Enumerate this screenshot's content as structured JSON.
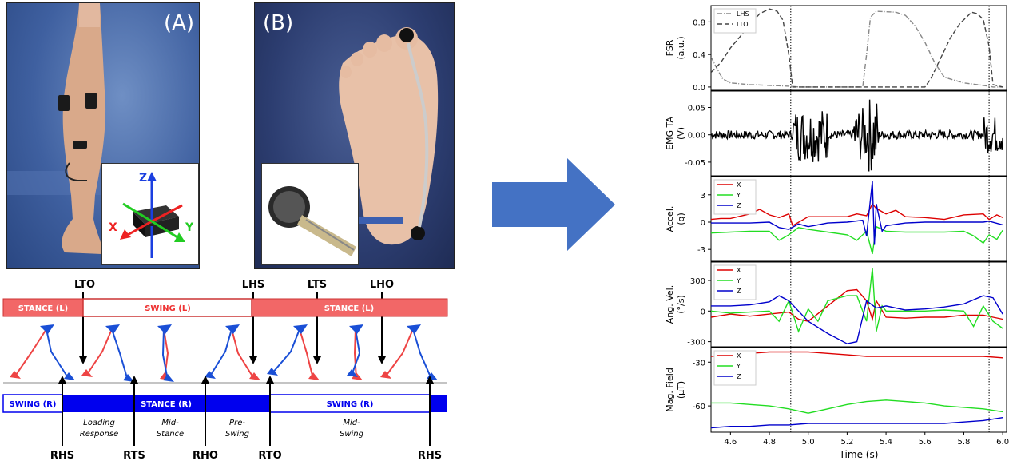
{
  "photo_a": {
    "label": "(A)",
    "imu_axes": {
      "z": "Z",
      "x": "X",
      "y": "Y"
    }
  },
  "photo_b": {
    "label": "(B)"
  },
  "gait": {
    "top_events": [
      "LTO",
      "LHS",
      "LTS",
      "LHO"
    ],
    "bottom_events": [
      "RHS",
      "RTS",
      "RHO",
      "RTO",
      "RHS"
    ],
    "left_bar": [
      "STANCE (L)",
      "SWING (L)",
      "STANCE (L)"
    ],
    "right_bar": [
      "SWING (R)",
      "STANCE (R)",
      "SWING (R)"
    ],
    "phases": [
      "Loading\nResponse",
      "Mid-\nStance",
      "Pre-\nSwing",
      "Mid-\nSwing"
    ],
    "colors": {
      "left": "#f26767",
      "right": "#0000ee",
      "left_stick": "#ee4444",
      "right_stick": "#1a4fd6"
    }
  },
  "chart_data": {
    "type": "line",
    "xlabel": "Time (s)",
    "xlim": [
      4.5,
      6.02
    ],
    "xticks": [
      4.6,
      4.8,
      5.0,
      5.2,
      5.4,
      5.6,
      5.8,
      6.0
    ],
    "event_lines": [
      4.91,
      5.93
    ],
    "subplots": [
      {
        "ylabel": "FSR\n(a.u.)",
        "ylim": [
          -0.04,
          1.0
        ],
        "yticks": [
          0.0,
          0.4,
          0.8
        ],
        "legend": [
          "LHS",
          "LTO"
        ],
        "legend_pos": "upper-left",
        "series": [
          {
            "name": "LHS",
            "style": "dashdot",
            "color": "#888888",
            "x": [
              4.5,
              4.53,
              4.56,
              4.6,
              4.7,
              4.8,
              4.9,
              4.95,
              5.0,
              5.2,
              5.28,
              5.3,
              5.32,
              5.35,
              5.45,
              5.5,
              5.55,
              5.6,
              5.65,
              5.7,
              5.8,
              5.9,
              5.93,
              5.95,
              6.0
            ],
            "y": [
              0.37,
              0.23,
              0.1,
              0.05,
              0.03,
              0.02,
              0.01,
              0.0,
              0.0,
              0.0,
              0.0,
              0.4,
              0.86,
              0.93,
              0.92,
              0.88,
              0.75,
              0.55,
              0.3,
              0.12,
              0.05,
              0.02,
              0.01,
              0.0,
              0.0
            ]
          },
          {
            "name": "LTO",
            "style": "dashed",
            "color": "#444444",
            "x": [
              4.5,
              4.55,
              4.6,
              4.65,
              4.7,
              4.75,
              4.8,
              4.84,
              4.87,
              4.9,
              4.92,
              5.0,
              5.2,
              5.4,
              5.6,
              5.63,
              5.68,
              5.73,
              5.78,
              5.84,
              5.87,
              5.9,
              5.93,
              5.95,
              6.0
            ],
            "y": [
              0.18,
              0.3,
              0.48,
              0.62,
              0.77,
              0.9,
              0.96,
              0.93,
              0.82,
              0.4,
              0.0,
              0.0,
              0.0,
              0.0,
              0.0,
              0.1,
              0.35,
              0.6,
              0.78,
              0.92,
              0.9,
              0.83,
              0.5,
              0.03,
              0.0
            ]
          }
        ]
      },
      {
        "ylabel": "EMG TA\n(V)",
        "ylim": [
          -0.075,
          0.08
        ],
        "yticks": [
          -0.05,
          0.0,
          0.05
        ],
        "series": [
          {
            "name": "",
            "color": "#000000",
            "x": [],
            "y": []
          }
        ]
      },
      {
        "ylabel": "Accel.\n(g)",
        "ylim": [
          -4.3,
          5.0
        ],
        "yticks": [
          -3,
          0,
          3
        ],
        "legend": [
          "X",
          "Y",
          "Z"
        ],
        "legend_pos": "upper-left",
        "series": [
          {
            "name": "X",
            "color": "#dd0000",
            "x": [
              4.5,
              4.55,
              4.6,
              4.7,
              4.75,
              4.8,
              4.85,
              4.9,
              4.92,
              5.0,
              5.1,
              5.2,
              5.25,
              5.3,
              5.33,
              5.35,
              5.4,
              5.45,
              5.5,
              5.6,
              5.7,
              5.8,
              5.9,
              5.93,
              5.97,
              6.0
            ],
            "y": [
              0.3,
              0.4,
              0.4,
              0.9,
              1.4,
              0.8,
              0.5,
              0.9,
              -0.4,
              0.6,
              0.6,
              0.6,
              0.9,
              0.7,
              2.0,
              1.5,
              0.9,
              1.3,
              0.6,
              0.5,
              0.3,
              0.8,
              0.9,
              0.3,
              0.8,
              0.5
            ]
          },
          {
            "name": "Y",
            "color": "#22dd22",
            "x": [
              4.5,
              4.6,
              4.7,
              4.8,
              4.85,
              4.9,
              4.95,
              5.0,
              5.1,
              5.2,
              5.25,
              5.3,
              5.33,
              5.35,
              5.4,
              5.5,
              5.6,
              5.7,
              5.8,
              5.85,
              5.9,
              5.93,
              5.97,
              6.0
            ],
            "y": [
              -1.2,
              -1.1,
              -1.0,
              -1.0,
              -2.0,
              -1.4,
              -0.6,
              -0.8,
              -1.1,
              -1.4,
              -2.0,
              -1.0,
              -3.5,
              -0.5,
              -1.0,
              -1.1,
              -1.1,
              -1.1,
              -1.0,
              -1.5,
              -2.3,
              -1.4,
              -1.9,
              -0.9
            ]
          },
          {
            "name": "Z",
            "color": "#0000cc",
            "x": [
              4.5,
              4.6,
              4.7,
              4.8,
              4.85,
              4.9,
              4.95,
              5.0,
              5.1,
              5.2,
              5.28,
              5.3,
              5.33,
              5.34,
              5.35,
              5.38,
              5.4,
              5.5,
              5.6,
              5.7,
              5.8,
              5.9,
              5.93,
              6.0
            ],
            "y": [
              -0.1,
              -0.1,
              -0.1,
              0.0,
              -0.6,
              -0.8,
              -0.2,
              -0.5,
              -0.1,
              0.0,
              0.2,
              -1.5,
              4.5,
              -2.5,
              2.0,
              -1.0,
              -0.4,
              -0.1,
              0.0,
              0.0,
              0.0,
              0.0,
              0.1,
              -0.3
            ]
          }
        ]
      },
      {
        "ylabel": "Ang. Vel.\n(°/s)",
        "ylim": [
          -350,
          480
        ],
        "yticks": [
          -300,
          0,
          300
        ],
        "legend": [
          "X",
          "Y",
          "Z"
        ],
        "legend_pos": "upper-left",
        "series": [
          {
            "name": "X",
            "color": "#dd0000",
            "x": [
              4.5,
              4.6,
              4.7,
              4.8,
              4.9,
              4.95,
              5.0,
              5.1,
              5.2,
              5.25,
              5.3,
              5.33,
              5.35,
              5.4,
              5.5,
              5.6,
              5.7,
              5.8,
              5.9,
              5.95,
              6.0
            ],
            "y": [
              -60,
              -30,
              -50,
              -30,
              -10,
              -80,
              -100,
              50,
              200,
              210,
              100,
              -80,
              100,
              -60,
              -70,
              -60,
              -60,
              -40,
              -40,
              -60,
              -80
            ]
          },
          {
            "name": "Y",
            "color": "#22dd22",
            "x": [
              4.5,
              4.6,
              4.7,
              4.8,
              4.85,
              4.9,
              4.95,
              5.0,
              5.05,
              5.1,
              5.2,
              5.25,
              5.3,
              5.33,
              5.35,
              5.38,
              5.4,
              5.5,
              5.6,
              5.7,
              5.8,
              5.85,
              5.9,
              5.95,
              6.0
            ],
            "y": [
              0,
              -20,
              -10,
              0,
              -100,
              100,
              -200,
              20,
              -100,
              100,
              150,
              150,
              -100,
              420,
              -200,
              50,
              0,
              0,
              0,
              10,
              0,
              -150,
              50,
              -100,
              -170
            ]
          },
          {
            "name": "Z",
            "color": "#0000cc",
            "x": [
              4.5,
              4.6,
              4.7,
              4.8,
              4.85,
              4.9,
              4.95,
              5.0,
              5.1,
              5.2,
              5.25,
              5.3,
              5.35,
              5.4,
              5.5,
              5.6,
              5.7,
              5.8,
              5.9,
              5.95,
              6.0
            ],
            "y": [
              50,
              50,
              60,
              90,
              150,
              100,
              0,
              -100,
              -220,
              -320,
              -300,
              100,
              30,
              50,
              10,
              20,
              40,
              70,
              150,
              130,
              -30
            ]
          }
        ]
      },
      {
        "ylabel": "Mag. Field\n(μT)",
        "ylim": [
          -78,
          -20
        ],
        "yticks": [
          -60,
          -30
        ],
        "legend": [
          "X",
          "Y",
          "Z"
        ],
        "legend_pos": "upper-left",
        "series": [
          {
            "name": "X",
            "color": "#dd0000",
            "x": [
              4.5,
              4.6,
              4.7,
              4.8,
              4.9,
              5.0,
              5.1,
              5.2,
              5.3,
              5.4,
              5.5,
              5.6,
              5.7,
              5.8,
              5.9,
              6.0
            ],
            "y": [
              -26,
              -25,
              -24,
              -23,
              -23,
              -23,
              -24,
              -25,
              -26,
              -26,
              -26,
              -26,
              -26,
              -26,
              -26,
              -27
            ]
          },
          {
            "name": "Y",
            "color": "#22dd22",
            "x": [
              4.5,
              4.6,
              4.7,
              4.8,
              4.9,
              5.0,
              5.1,
              5.2,
              5.3,
              5.4,
              5.5,
              5.6,
              5.7,
              5.8,
              5.9,
              6.0
            ],
            "y": [
              -58,
              -58,
              -59,
              -60,
              -62,
              -65,
              -62,
              -59,
              -57,
              -56,
              -57,
              -58,
              -60,
              -61,
              -62,
              -64
            ]
          },
          {
            "name": "Z",
            "color": "#0000cc",
            "x": [
              4.5,
              4.6,
              4.7,
              4.8,
              4.9,
              5.0,
              5.1,
              5.2,
              5.3,
              5.4,
              5.5,
              5.6,
              5.7,
              5.8,
              5.9,
              6.0
            ],
            "y": [
              -75,
              -74,
              -74,
              -73,
              -73,
              -72,
              -72,
              -72,
              -72,
              -72,
              -72,
              -72,
              -72,
              -71,
              -70,
              -68
            ]
          }
        ]
      }
    ]
  }
}
